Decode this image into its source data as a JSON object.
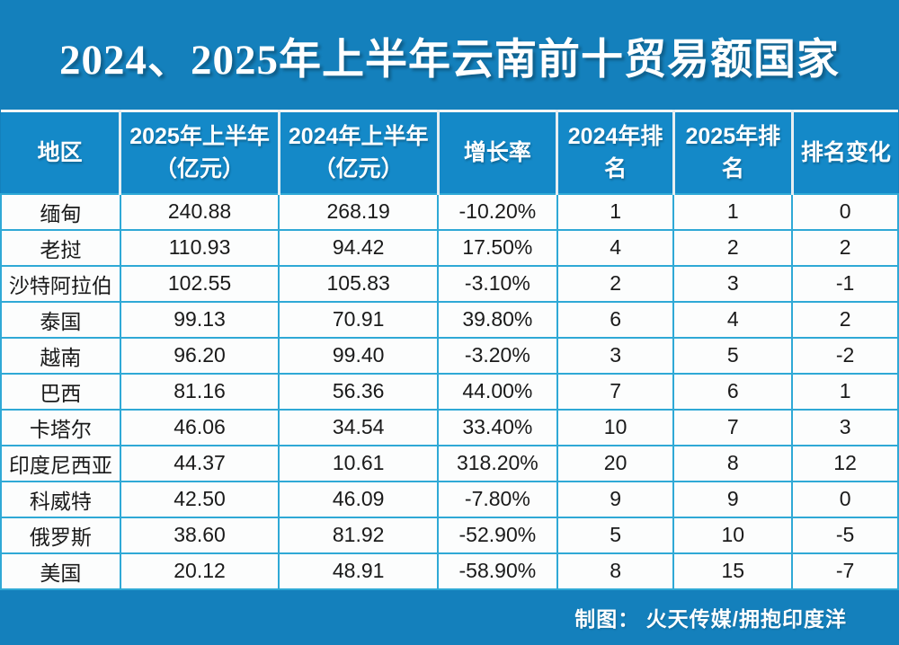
{
  "title": "2024、2025年上半年云南前十贸易额国家",
  "footer": {
    "credit": "制图： 火天传媒/拥抱印度洋"
  },
  "colors": {
    "page_background": "#1480BC",
    "header_background": "#1489C8",
    "header_grid_line": "#E7EEF1",
    "body_grid_line": "#2FA9D6",
    "row_background": "#FCFDFD",
    "title_text": "#FFFFFF",
    "cell_text": "#1A1A1A"
  },
  "chart_data": {
    "type": "table",
    "title": "2024、2025年上半年云南前十贸易额国家",
    "columns": [
      "地区",
      "2025年上半年（亿元）",
      "2024年上半年（亿元）",
      "增长率",
      "2024年排名",
      "2025年排名",
      "排名变化"
    ],
    "header_lines": [
      [
        "地区"
      ],
      [
        "2025年上半年",
        "（亿元）"
      ],
      [
        "2024年上半年",
        "（亿元）"
      ],
      [
        "增长率"
      ],
      [
        "2024年排名"
      ],
      [
        "2025年排名"
      ],
      [
        "排名变化"
      ]
    ],
    "column_widths_pct": [
      13.3,
      17.7,
      17.7,
      13.3,
      13.0,
      13.2,
      11.8
    ],
    "rows": [
      [
        "缅甸",
        "240.88",
        "268.19",
        "-10.20%",
        "1",
        "1",
        "0"
      ],
      [
        "老挝",
        "110.93",
        "94.42",
        "17.50%",
        "4",
        "2",
        "2"
      ],
      [
        "沙特阿拉伯",
        "102.55",
        "105.83",
        "-3.10%",
        "2",
        "3",
        "-1"
      ],
      [
        "泰国",
        "99.13",
        "70.91",
        "39.80%",
        "6",
        "4",
        "2"
      ],
      [
        "越南",
        "96.20",
        "99.40",
        "-3.20%",
        "3",
        "5",
        "-2"
      ],
      [
        "巴西",
        "81.16",
        "56.36",
        "44.00%",
        "7",
        "6",
        "1"
      ],
      [
        "卡塔尔",
        "46.06",
        "34.54",
        "33.40%",
        "10",
        "7",
        "3"
      ],
      [
        "印度尼西亚",
        "44.37",
        "10.61",
        "318.20%",
        "20",
        "8",
        "12"
      ],
      [
        "科威特",
        "42.50",
        "46.09",
        "-7.80%",
        "9",
        "9",
        "0"
      ],
      [
        "俄罗斯",
        "38.60",
        "81.92",
        "-52.90%",
        "5",
        "10",
        "-5"
      ],
      [
        "美国",
        "20.12",
        "48.91",
        "-58.90%",
        "8",
        "15",
        "-7"
      ]
    ]
  }
}
